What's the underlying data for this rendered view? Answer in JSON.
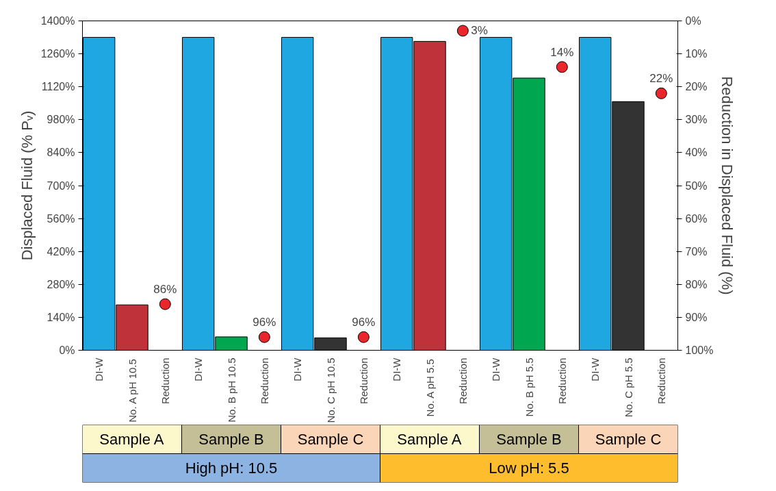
{
  "chart_data": {
    "type": "bar",
    "ylabel": "Displaced Fluid (% Pᵥ)",
    "y2label": "Reduction in Displaced Fluid (%)",
    "categories": [
      "DI-W",
      "No. A pH 10.5",
      "Reduction",
      "DI-W",
      "No. B pH 10.5",
      "Reduction",
      "DI-W",
      "No. C pH 10.5",
      "Reduction",
      "DI-W",
      "No. A pH 5.5",
      "Reduction",
      "DI-W",
      "No. B pH 5.5",
      "Reduction",
      "DI-W",
      "No. C pH 5.5",
      "Reduction"
    ],
    "series": [
      {
        "values": [
          1330,
          193,
          null,
          1330,
          57,
          null,
          1330,
          53,
          null,
          1330,
          1313,
          null,
          1330,
          1157,
          null,
          1330,
          1057,
          null
        ],
        "colors": [
          "#1ea7e1",
          "#c0323a",
          null,
          "#1ea7e1",
          "#00a650",
          null,
          "#1ea7e1",
          "#333333",
          null,
          "#1ea7e1",
          "#c0323a",
          null,
          "#1ea7e1",
          "#00a650",
          null,
          "#1ea7e1",
          "#333333",
          null
        ]
      },
      {
        "type": "scatter",
        "axis": "y2",
        "color": "#e8262b",
        "values": [
          null,
          null,
          86,
          null,
          null,
          96,
          null,
          null,
          96,
          null,
          null,
          3,
          null,
          null,
          14,
          null,
          null,
          22
        ],
        "value_labels": [
          null,
          null,
          "86%",
          null,
          null,
          "96%",
          null,
          null,
          "96%",
          null,
          null,
          "3%",
          null,
          null,
          "14%",
          null,
          null,
          "22%"
        ]
      }
    ],
    "marker": "circle",
    "ylim": [
      0,
      1400
    ],
    "yticks": [
      {
        "value": 0,
        "label": "0%"
      },
      {
        "value": 140,
        "label": "140%"
      },
      {
        "value": 280,
        "label": "280%"
      },
      {
        "value": 420,
        "label": "420%"
      },
      {
        "value": 560,
        "label": "560%"
      },
      {
        "value": 700,
        "label": "700%"
      },
      {
        "value": 840,
        "label": "840%"
      },
      {
        "value": 980,
        "label": "980%"
      },
      {
        "value": 1120,
        "label": "1120%"
      },
      {
        "value": 1260,
        "label": "1260%"
      },
      {
        "value": 1400,
        "label": "1400%"
      }
    ],
    "y2lim": [
      100,
      0
    ],
    "y2ticks": [
      {
        "value": 0,
        "label": "0%"
      },
      {
        "value": 10,
        "label": "10%"
      },
      {
        "value": 20,
        "label": "20%"
      },
      {
        "value": 30,
        "label": "30%"
      },
      {
        "value": 40,
        "label": "40%"
      },
      {
        "value": 50,
        "label": "50%"
      },
      {
        "value": 60,
        "label": "60%"
      },
      {
        "value": 70,
        "label": "70%"
      },
      {
        "value": 80,
        "label": "80%"
      },
      {
        "value": 90,
        "label": "90%"
      },
      {
        "value": 100,
        "label": "100%"
      }
    ],
    "annotations": [
      "Sample A",
      "Sample B",
      "Sample C",
      "Sample A",
      "Sample B",
      "Sample C",
      "High pH: 10.5",
      "Low pH: 5.5"
    ]
  }
}
